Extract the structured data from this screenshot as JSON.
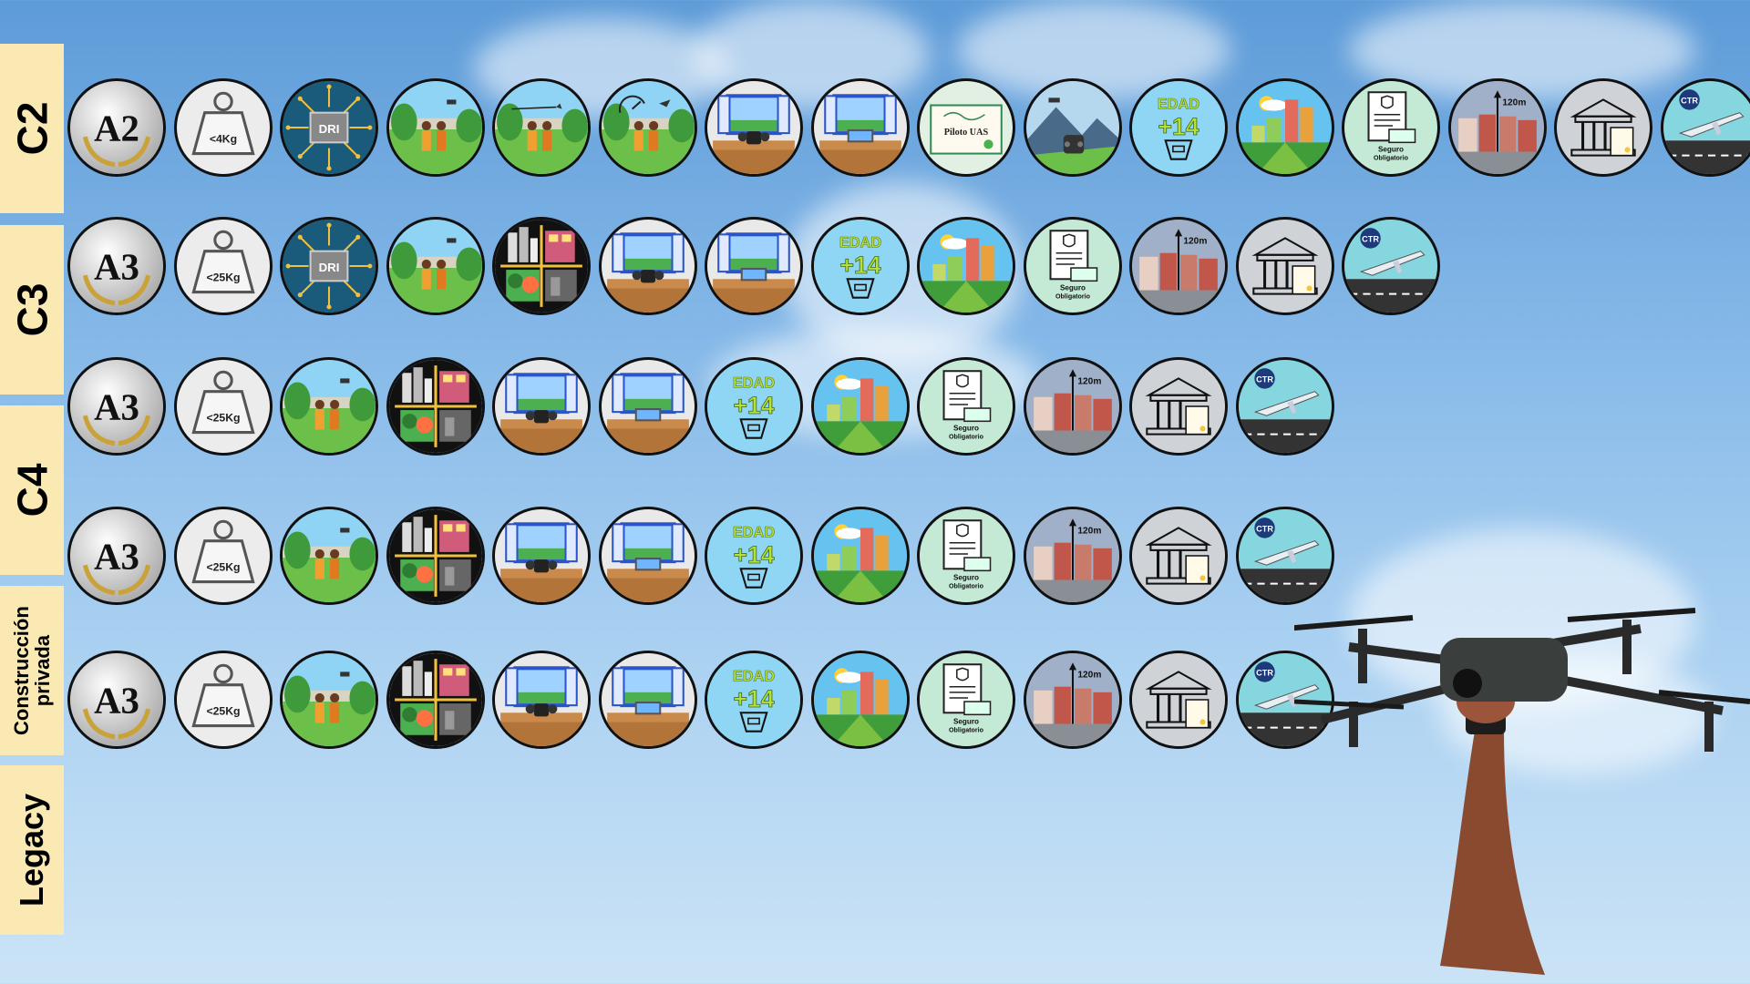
{
  "rows": [
    {
      "label": "C2",
      "badges": [
        "A2",
        "<4Kg",
        "DRI",
        "observers",
        "distance",
        "speed",
        "window-drone",
        "window-laptop",
        "Piloto UAS",
        "mountain-controller",
        "EDAD +14",
        "urban-area",
        "Seguro Obligatorio",
        "120m",
        "government-building",
        "CTR"
      ]
    },
    {
      "label": "C3",
      "badges": [
        "A3",
        "<25Kg",
        "DRI",
        "observers",
        "urban-quadrants",
        "window-drone",
        "window-laptop",
        "EDAD +14",
        "urban-area",
        "Seguro Obligatorio",
        "120m",
        "government-building",
        "CTR"
      ]
    },
    {
      "label": "C4",
      "badges": [
        "A3",
        "<25Kg",
        "observers",
        "urban-quadrants",
        "window-drone",
        "window-laptop",
        "EDAD +14",
        "urban-area",
        "Seguro Obligatorio",
        "120m",
        "government-building",
        "CTR"
      ]
    },
    {
      "label": "Construcción\nprivada",
      "badges": [
        "A3",
        "<25Kg",
        "observers",
        "urban-quadrants",
        "window-drone",
        "window-laptop",
        "EDAD +14",
        "urban-area",
        "Seguro Obligatorio",
        "120m",
        "government-building",
        "CTR"
      ]
    },
    {
      "label": "Legacy",
      "badges": [
        "A3",
        "<25Kg",
        "observers",
        "urban-quadrants",
        "window-drone",
        "window-laptop",
        "EDAD +14",
        "urban-area",
        "Seguro Obligatorio",
        "120m",
        "government-building",
        "CTR"
      ]
    }
  ],
  "badge_text": {
    "A2": "A2",
    "A3": "A3",
    "W4": "<4Kg",
    "W25": "<25Kg",
    "DRI": "DRI",
    "EDAD": "EDAD",
    "AGE": "+14",
    "PILOTO": "Piloto UAS",
    "SEGURO": "Seguro",
    "OBLIG": "Obligatorio",
    "ALT": "120m",
    "CTR": "CTR"
  },
  "colors": {
    "tab": "#fbe9b4",
    "badge_border": "#111111",
    "age_green": "#b8e03a"
  }
}
